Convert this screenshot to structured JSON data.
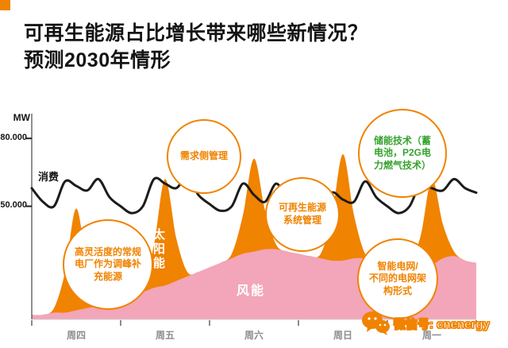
{
  "page": {
    "title_line1": "可再生能源占比增长带来哪些新情况？",
    "title_line2": "预测2030年情形",
    "accent_color": "#f08300",
    "pink_color": "#f3a5b9",
    "green_color": "#35a32e"
  },
  "watermark": {
    "icon": "wechat-icon",
    "label": "微信号: cnenergy"
  },
  "chart_data": {
    "type": "area",
    "unit_label": "MW",
    "ylim": [
      0,
      92000
    ],
    "grid": false,
    "x_tick_labels": [
      "周四",
      "周五",
      "周六",
      "周日",
      "周一"
    ],
    "y_ticks": [
      {
        "value": 50000,
        "label": "50.000"
      },
      {
        "value": 80000,
        "label": "80.000"
      }
    ],
    "in_chart_labels": {
      "consumption": "消费",
      "wind": "风能",
      "solar": "太阳能"
    },
    "series": [
      {
        "name": "风能",
        "type": "area-base",
        "color": "#f3a5b9",
        "values": [
          2000,
          2000,
          3000,
          3000,
          4000,
          5000,
          6000,
          8000,
          9000,
          10000,
          12000,
          14000,
          15000,
          17000,
          19000,
          21000,
          23000,
          25000,
          27000,
          29000,
          30000,
          31000,
          31000,
          30000,
          29000,
          28000,
          27000,
          26000,
          26000,
          27000,
          27000,
          26000,
          25000,
          24000,
          23000,
          22000,
          24000,
          27000,
          28000,
          26000,
          25000
        ]
      },
      {
        "name": "太阳能",
        "type": "area-stacked",
        "color": "#f08300",
        "values": [
          0,
          0,
          2000,
          18000,
          45000,
          18000,
          2000,
          0,
          0,
          0,
          2000,
          19000,
          47000,
          19000,
          2000,
          0,
          0,
          0,
          2000,
          17000,
          41000,
          17000,
          2000,
          0,
          0,
          0,
          2000,
          19000,
          47000,
          19000,
          2000,
          0,
          0,
          0,
          2000,
          15000,
          38000,
          15000,
          2000,
          0,
          0
        ]
      },
      {
        "name": "消费",
        "type": "line",
        "color": "#1c1c1c",
        "values": [
          58000,
          52000,
          50000,
          61000,
          59000,
          57000,
          62000,
          54000,
          50000,
          47000,
          50000,
          62000,
          60000,
          58000,
          63000,
          55000,
          51000,
          48000,
          50000,
          60000,
          55000,
          52000,
          60000,
          53000,
          49000,
          46000,
          48000,
          56000,
          53000,
          52000,
          61000,
          54000,
          50000,
          47000,
          50000,
          60000,
          58000,
          57000,
          62000,
          58000,
          56000
        ]
      }
    ],
    "annotations": [
      {
        "lines": [
          "需求侧管理"
        ],
        "color": "#f08300"
      },
      {
        "lines": [
          "储能技术（蓄",
          "电池，P2G电",
          "力燃气技术）"
        ],
        "color": "#35a32e"
      },
      {
        "lines": [
          "可再生能源",
          "系统管理"
        ],
        "color": "#f08300"
      },
      {
        "lines": [
          "高灵活度的常规",
          "电厂作为调峰补",
          "充能源"
        ],
        "color": "#f08300"
      },
      {
        "lines": [
          "智能电网/",
          "不同的电网架",
          "构形式"
        ],
        "color": "#f08300"
      }
    ]
  }
}
